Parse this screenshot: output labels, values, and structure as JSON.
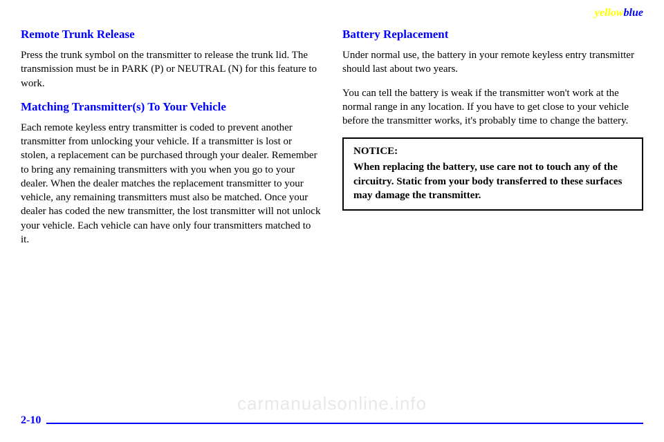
{
  "brand": {
    "part1": "yellow",
    "part2": "blue"
  },
  "left": {
    "h1": "Remote Trunk Release",
    "p1": "Press the trunk symbol on the transmitter to release the trunk lid. The transmission must be in PARK (P) or NEUTRAL (N) for this feature to work.",
    "h2": "Matching Transmitter(s) To Your Vehicle",
    "p2": "Each remote keyless entry transmitter is coded to prevent another transmitter from unlocking your vehicle. If a transmitter is lost or stolen, a replacement can be purchased through your dealer. Remember to bring any remaining transmitters with you when you go to your dealer. When the dealer matches the replacement transmitter to your vehicle, any remaining transmitters must also be matched. Once your dealer has coded the new transmitter, the lost transmitter will not unlock your vehicle. Each vehicle can have only four transmitters matched to it."
  },
  "right": {
    "h1": "Battery Replacement",
    "p1": "Under normal use, the battery in your remote keyless entry transmitter should last about two years.",
    "p2": "You can tell the battery is weak if the transmitter won't work at the normal range in any location. If you have to get close to your vehicle before the transmitter works, it's probably time to change the battery.",
    "notice_label": "NOTICE:",
    "notice_text": "When replacing the battery, use care not to touch any of the circuitry. Static from your body transferred to these surfaces may damage the transmitter."
  },
  "watermark": "carmanualsonline.info",
  "page_number": "2-10",
  "colors": {
    "heading": "#0000ff",
    "line": "#0000ff",
    "brand_yellow": "#ffff00",
    "brand_blue": "#0000ff",
    "watermark": "#e8e8e8"
  }
}
